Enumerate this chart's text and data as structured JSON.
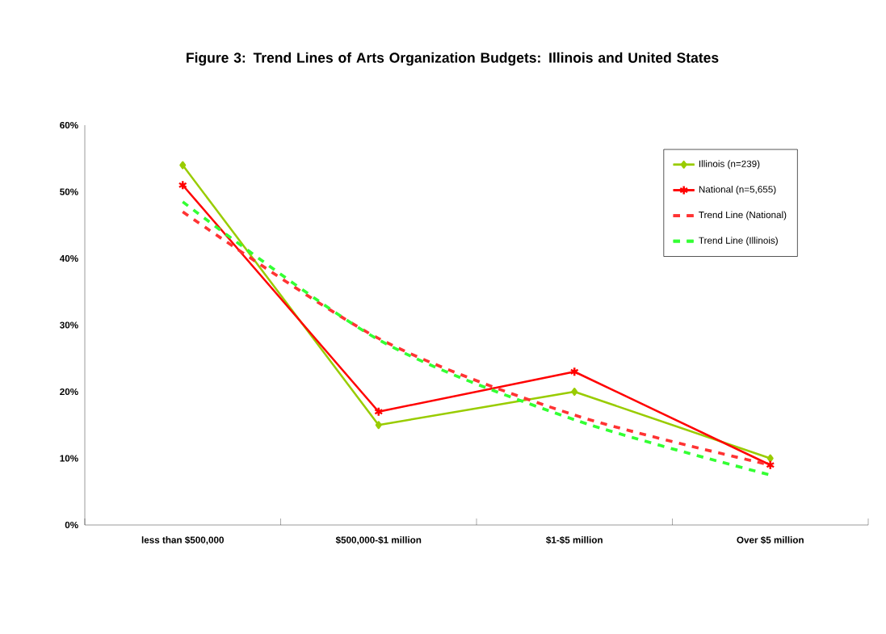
{
  "chart_data": {
    "type": "line",
    "title": "Figure 3: Trend Lines of Arts Organization Budgets: Illinois and United States",
    "categories": [
      "less than $500,000",
      "$500,000-$1 million",
      "$1-$5 million",
      "Over $5 million"
    ],
    "series": [
      {
        "name": "Illinois (n=239)",
        "color": "#99cc00",
        "marker": "diamond",
        "line_style": "solid",
        "values": [
          54,
          15,
          20,
          10
        ]
      },
      {
        "name": "National (n=5,655)",
        "color": "#ff0000",
        "marker": "cross",
        "line_style": "solid",
        "values": [
          51,
          17,
          23,
          9
        ]
      },
      {
        "name": "Trend Line (National)",
        "color": "#ff3333",
        "marker": "none",
        "line_style": "dashed",
        "values": [
          47,
          28,
          16.5,
          9
        ]
      },
      {
        "name": "Trend Line (Illinois)",
        "color": "#33ff33",
        "marker": "none",
        "line_style": "dashed",
        "values": [
          48.5,
          27.8,
          15.8,
          7.5
        ]
      }
    ],
    "ylim": [
      0,
      60
    ],
    "yticks": [
      {
        "value": 0,
        "label": "0%"
      },
      {
        "value": 10,
        "label": "10%"
      },
      {
        "value": 20,
        "label": "20%"
      },
      {
        "value": 30,
        "label": "30%"
      },
      {
        "value": 40,
        "label": "40%"
      },
      {
        "value": 50,
        "label": "50%"
      },
      {
        "value": 60,
        "label": "60%"
      }
    ],
    "grid": false,
    "legend": "top right"
  }
}
